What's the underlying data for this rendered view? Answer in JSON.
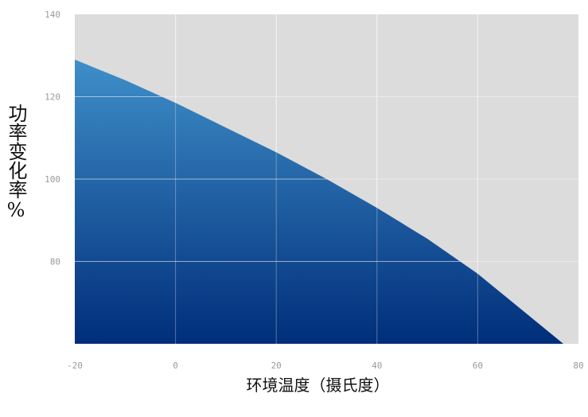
{
  "chart_data": {
    "type": "area",
    "title": "",
    "xlabel": "环境温度（摄氏度）",
    "ylabel": "功率变化率%",
    "xlim": [
      -20,
      80
    ],
    "ylim": [
      60,
      140
    ],
    "x_ticks": [
      -20,
      0,
      20,
      40,
      60,
      80
    ],
    "y_ticks": [
      80,
      100,
      120,
      140
    ],
    "grid": true,
    "series": [
      {
        "x": [
          -20,
          -10,
          0,
          10,
          20,
          30,
          40,
          50,
          60,
          70,
          77
        ],
        "y": [
          129,
          124,
          118.5,
          112.5,
          106.5,
          100,
          93,
          85.5,
          77,
          67,
          60
        ]
      }
    ],
    "colors": {
      "fill_top": "#3f8fc9",
      "fill_bottom": "#002e7a",
      "plot_bg": "#dcdcdc",
      "grid": "#f2f2f2"
    }
  }
}
